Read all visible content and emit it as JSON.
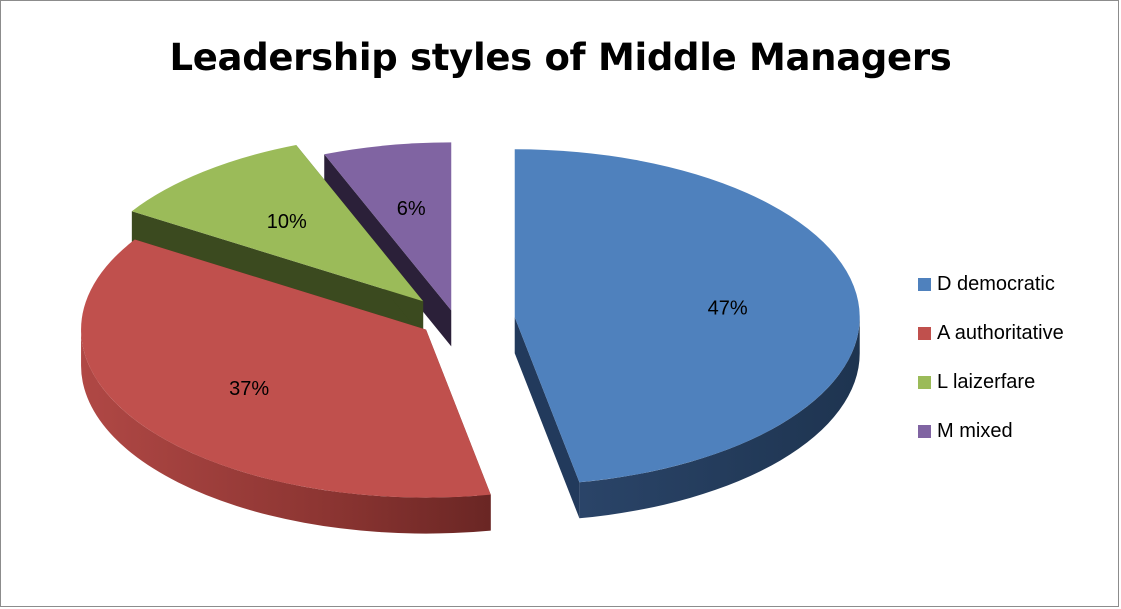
{
  "chart_data": {
    "type": "pie",
    "title": "Leadership styles of Middle Managers",
    "categories": [
      "D democratic",
      "A authoritative",
      "L laizerfare",
      "M mixed"
    ],
    "values": [
      47,
      37,
      10,
      6
    ],
    "labels": [
      "47%",
      "37%",
      "10%",
      "6%"
    ],
    "colors": [
      "#4f81bd",
      "#c0504d",
      "#9bbb59",
      "#8064a2"
    ],
    "exploded": true,
    "three_d": true,
    "legend_position": "right"
  }
}
